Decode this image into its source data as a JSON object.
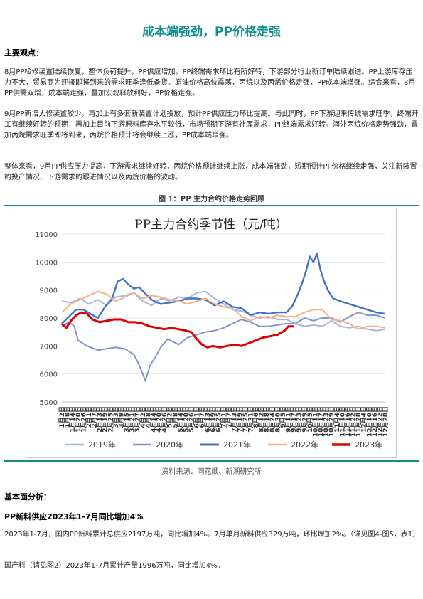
{
  "report": {
    "title": "成本端强劲，PP价格走强",
    "section_view": "主要观点：",
    "paragraphs": [
      "8月PP检修装置陆续恢复，整体负荷提升，PP供应增加。PP终端需求环比有所好转，下游部分行业新订单陆续跟进。PP上游库存压力不大，贸易商为迎接即将到来的需求旺季逢低备货。原油价格高位震荡，丙烷以及丙烯价格走强，PP成本端增强。综合来看，8月PP供需双增，成本端走强，叠加宏观释放利好，PP价格走强。",
      "9月PP新增大修装置较少，再加上有多套新装置计划投放，预计PP供应压力环比提高。与此同时，PP下游迎来传统需求旺季，终端开工有继续好转的预期，再加上目前下游原料库存水平较低，市场预期下游有补库需求，PP终端需求好转。海外丙烷价格走势强劲，叠加丙烷需求旺季即将到来，丙烷价格预计将会继续上涨，PP成本端增强。",
      "整体来看，9月PP供应压力提高，下游需求继续好转，丙烷价格预计继续上涨，成本端强劲，短期预计PP价格继续走强，关注新装置的投产情况、下游需求的跟进情况以及丙烷价格的波动。"
    ],
    "figure_caption": "图 1：PP 主力合约价格走势回顾",
    "figure_source": "资料来源：同花顺、新湖研究所",
    "section_fundamental": "基本面分析：",
    "subsection": "PP新料供应2023年1-7月同比增加4%",
    "para_supply": "2023年1-7月，国内PP新料累计总供应2197万吨，同比增加4%。7月单月新料供应329万吨，环比增加2%。（详见图4-图5，表1）",
    "para_domestic": "国产料（请见图2）2023年1-7月累计产量1996万吨，同比增加4%。"
  },
  "chart_data": {
    "type": "line",
    "title": "PP主力合约季节性（元/吨）",
    "ylim": [
      5000,
      11000
    ],
    "yticks": [
      5000,
      6000,
      7000,
      8000,
      9000,
      10000,
      11000
    ],
    "x_ticks": [
      "1月2日",
      "1月8日",
      "1月14日",
      "1月20日",
      "1月26日",
      "2月1日",
      "2月7日",
      "2月13日",
      "2月19日",
      "2月25日",
      "3月3日",
      "3月9日",
      "3月15日",
      "3月21日",
      "3月27日",
      "4月2日",
      "4月8日",
      "4月14日",
      "4月20日",
      "4月26日",
      "5月2日",
      "5月8日",
      "5月14日",
      "5月20日",
      "5月26日",
      "6月1日",
      "6月7日",
      "6月13日",
      "6月19日",
      "6月25日",
      "7月1日",
      "7月7日",
      "7月13日",
      "7月19日",
      "7月25日",
      "7月31日",
      "8月6日",
      "8月12日",
      "8月18日",
      "8月24日",
      "8月30日",
      "9月5日",
      "9月11日",
      "9月17日",
      "9月23日",
      "9月29日",
      "10月5日",
      "10月11日",
      "10月17日",
      "10月23日",
      "10月29日",
      "11月4日",
      "11月10日",
      "11月16日",
      "11月22日",
      "11月28日",
      "12月4日",
      "12月10日",
      "12月16日",
      "12月22日",
      "12月28日"
    ],
    "x_range": [
      0,
      360
    ],
    "legend_position": "bottom",
    "series": [
      {
        "name": "2019年",
        "color": "#a7b7dc",
        "width": 2,
        "points": [
          [
            0,
            8600
          ],
          [
            10,
            8550
          ],
          [
            20,
            8700
          ],
          [
            30,
            8500
          ],
          [
            40,
            8650
          ],
          [
            50,
            8450
          ],
          [
            60,
            8750
          ],
          [
            70,
            8800
          ],
          [
            80,
            8900
          ],
          [
            90,
            8600
          ],
          [
            100,
            8450
          ],
          [
            110,
            8700
          ],
          [
            120,
            8600
          ],
          [
            130,
            8750
          ],
          [
            140,
            8700
          ],
          [
            150,
            8900
          ],
          [
            160,
            8950
          ],
          [
            170,
            8700
          ],
          [
            180,
            8500
          ],
          [
            190,
            8300
          ],
          [
            200,
            8250
          ],
          [
            210,
            8100
          ],
          [
            220,
            8000
          ],
          [
            230,
            8050
          ],
          [
            240,
            7950
          ],
          [
            250,
            7950
          ],
          [
            260,
            7800
          ],
          [
            270,
            7700
          ],
          [
            280,
            7750
          ],
          [
            290,
            7700
          ],
          [
            300,
            7900
          ],
          [
            310,
            7700
          ],
          [
            320,
            7650
          ],
          [
            330,
            7700
          ],
          [
            340,
            7600
          ],
          [
            350,
            7550
          ],
          [
            360,
            7600
          ]
        ]
      },
      {
        "name": "2020年",
        "color": "#8496c8",
        "width": 2,
        "points": [
          [
            0,
            7700
          ],
          [
            8,
            7850
          ],
          [
            14,
            7700
          ],
          [
            18,
            7200
          ],
          [
            28,
            7000
          ],
          [
            40,
            6850
          ],
          [
            50,
            6900
          ],
          [
            60,
            6950
          ],
          [
            70,
            6900
          ],
          [
            80,
            6700
          ],
          [
            85,
            6400
          ],
          [
            90,
            6000
          ],
          [
            93,
            5750
          ],
          [
            98,
            6300
          ],
          [
            104,
            6600
          ],
          [
            110,
            6950
          ],
          [
            118,
            7250
          ],
          [
            124,
            7150
          ],
          [
            130,
            7050
          ],
          [
            140,
            7300
          ],
          [
            150,
            7400
          ],
          [
            160,
            7500
          ],
          [
            170,
            7550
          ],
          [
            180,
            7650
          ],
          [
            190,
            7800
          ],
          [
            200,
            7950
          ],
          [
            210,
            7850
          ],
          [
            220,
            7700
          ],
          [
            230,
            7700
          ],
          [
            240,
            7750
          ],
          [
            250,
            7800
          ],
          [
            260,
            7800
          ],
          [
            270,
            8000
          ],
          [
            280,
            7900
          ],
          [
            290,
            8000
          ],
          [
            300,
            8000
          ],
          [
            310,
            7850
          ],
          [
            320,
            8050
          ],
          [
            330,
            8200
          ],
          [
            340,
            8100
          ],
          [
            350,
            8100
          ],
          [
            360,
            8000
          ]
        ]
      },
      {
        "name": "2021年",
        "color": "#4472c4",
        "width": 2.4,
        "points": [
          [
            0,
            7800
          ],
          [
            8,
            8050
          ],
          [
            16,
            8300
          ],
          [
            24,
            8300
          ],
          [
            32,
            8150
          ],
          [
            40,
            8000
          ],
          [
            48,
            8400
          ],
          [
            56,
            8700
          ],
          [
            62,
            9300
          ],
          [
            68,
            9400
          ],
          [
            74,
            9200
          ],
          [
            80,
            9050
          ],
          [
            86,
            9100
          ],
          [
            92,
            8900
          ],
          [
            100,
            8650
          ],
          [
            110,
            8500
          ],
          [
            120,
            8550
          ],
          [
            130,
            8600
          ],
          [
            140,
            8700
          ],
          [
            150,
            8700
          ],
          [
            160,
            8650
          ],
          [
            170,
            8450
          ],
          [
            180,
            8600
          ],
          [
            190,
            8400
          ],
          [
            200,
            8350
          ],
          [
            210,
            8100
          ],
          [
            220,
            8200
          ],
          [
            230,
            8150
          ],
          [
            240,
            8200
          ],
          [
            250,
            8200
          ],
          [
            256,
            8400
          ],
          [
            262,
            8800
          ],
          [
            268,
            9300
          ],
          [
            272,
            9700
          ],
          [
            276,
            10200
          ],
          [
            280,
            10000
          ],
          [
            284,
            10300
          ],
          [
            288,
            9700
          ],
          [
            292,
            9300
          ],
          [
            296,
            9000
          ],
          [
            302,
            8700
          ],
          [
            310,
            8600
          ],
          [
            320,
            8500
          ],
          [
            330,
            8400
          ],
          [
            340,
            8300
          ],
          [
            350,
            8200
          ],
          [
            360,
            8150
          ]
        ]
      },
      {
        "name": "2022年",
        "color": "#f4b183",
        "width": 2,
        "points": [
          [
            0,
            8200
          ],
          [
            10,
            8500
          ],
          [
            20,
            8650
          ],
          [
            30,
            8800
          ],
          [
            40,
            8950
          ],
          [
            50,
            8850
          ],
          [
            60,
            8600
          ],
          [
            70,
            8750
          ],
          [
            80,
            8900
          ],
          [
            90,
            8700
          ],
          [
            100,
            8800
          ],
          [
            110,
            8750
          ],
          [
            120,
            8650
          ],
          [
            130,
            8600
          ],
          [
            140,
            8500
          ],
          [
            150,
            8600
          ],
          [
            160,
            8700
          ],
          [
            170,
            8500
          ],
          [
            180,
            8400
          ],
          [
            190,
            8350
          ],
          [
            200,
            8050
          ],
          [
            210,
            7900
          ],
          [
            220,
            8050
          ],
          [
            230,
            8000
          ],
          [
            240,
            8100
          ],
          [
            250,
            8050
          ],
          [
            260,
            8050
          ],
          [
            270,
            8200
          ],
          [
            280,
            8300
          ],
          [
            290,
            8300
          ],
          [
            300,
            7950
          ],
          [
            310,
            7900
          ],
          [
            320,
            7800
          ],
          [
            330,
            7600
          ],
          [
            340,
            7700
          ],
          [
            350,
            7700
          ],
          [
            360,
            7650
          ]
        ]
      },
      {
        "name": "2023年",
        "color": "#e00000",
        "width": 3,
        "points": [
          [
            0,
            7800
          ],
          [
            5,
            7650
          ],
          [
            10,
            7900
          ],
          [
            16,
            8100
          ],
          [
            22,
            8200
          ],
          [
            28,
            8150
          ],
          [
            34,
            7950
          ],
          [
            42,
            7850
          ],
          [
            50,
            7900
          ],
          [
            58,
            7950
          ],
          [
            66,
            7950
          ],
          [
            74,
            7850
          ],
          [
            82,
            7850
          ],
          [
            90,
            7800
          ],
          [
            98,
            7700
          ],
          [
            106,
            7650
          ],
          [
            114,
            7600
          ],
          [
            122,
            7650
          ],
          [
            130,
            7600
          ],
          [
            138,
            7550
          ],
          [
            144,
            7500
          ],
          [
            150,
            7250
          ],
          [
            156,
            7050
          ],
          [
            162,
            6950
          ],
          [
            168,
            7000
          ],
          [
            176,
            6950
          ],
          [
            184,
            7000
          ],
          [
            192,
            7050
          ],
          [
            200,
            7000
          ],
          [
            208,
            7100
          ],
          [
            216,
            7200
          ],
          [
            224,
            7300
          ],
          [
            232,
            7350
          ],
          [
            240,
            7400
          ],
          [
            248,
            7550
          ],
          [
            252,
            7700
          ],
          [
            258,
            7700
          ]
        ]
      }
    ]
  }
}
